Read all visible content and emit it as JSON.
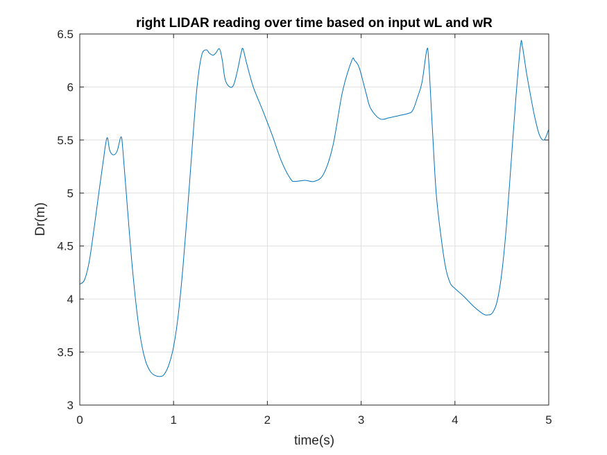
{
  "chart_data": {
    "type": "line",
    "title": "right LIDAR reading over time based on input wL and wR",
    "xlabel": "time(s)",
    "ylabel": "Dr(m)",
    "xlim": [
      0,
      5
    ],
    "ylim": [
      3,
      6.5
    ],
    "xticks": [
      "0",
      "1",
      "2",
      "3",
      "4",
      "5"
    ],
    "yticks": [
      "3",
      "3.5",
      "4",
      "4.5",
      "5",
      "5.5",
      "6",
      "6.5"
    ],
    "grid": true,
    "line_color": "#0072BD",
    "series": [
      {
        "x": [
          0,
          0.05,
          0.1,
          0.15,
          0.2,
          0.25,
          0.29,
          0.32,
          0.36,
          0.4,
          0.44,
          0.46,
          0.5,
          0.55,
          0.6,
          0.65,
          0.7,
          0.75,
          0.8,
          0.86,
          0.9,
          0.95,
          1.0,
          1.05,
          1.1,
          1.15,
          1.2,
          1.25,
          1.3,
          1.35,
          1.38,
          1.42,
          1.45,
          1.49,
          1.52,
          1.55,
          1.6,
          1.64,
          1.68,
          1.72,
          1.74,
          1.78,
          1.85,
          1.95,
          2.05,
          2.15,
          2.25,
          2.3,
          2.4,
          2.5,
          2.6,
          2.7,
          2.8,
          2.9,
          2.93,
          2.98,
          3.05,
          3.1,
          3.2,
          3.3,
          3.4,
          3.5,
          3.55,
          3.6,
          3.65,
          3.7,
          3.72,
          3.76,
          3.8,
          3.85,
          3.9,
          3.95,
          4.0,
          4.1,
          4.2,
          4.3,
          4.35,
          4.4,
          4.45,
          4.5,
          4.55,
          4.6,
          4.65,
          4.7,
          4.72,
          4.76,
          4.8,
          4.85,
          4.9,
          4.95,
          5.0
        ],
        "y": [
          4.14,
          4.18,
          4.35,
          4.65,
          4.98,
          5.3,
          5.52,
          5.4,
          5.36,
          5.4,
          5.53,
          5.4,
          4.95,
          4.4,
          3.95,
          3.62,
          3.42,
          3.32,
          3.28,
          3.27,
          3.29,
          3.38,
          3.55,
          3.85,
          4.3,
          4.85,
          5.45,
          6.0,
          6.3,
          6.35,
          6.32,
          6.3,
          6.32,
          6.36,
          6.25,
          6.07,
          6.0,
          6.02,
          6.15,
          6.32,
          6.36,
          6.22,
          6.0,
          5.78,
          5.55,
          5.3,
          5.13,
          5.11,
          5.12,
          5.11,
          5.18,
          5.45,
          5.95,
          6.25,
          6.25,
          6.18,
          5.95,
          5.8,
          5.7,
          5.71,
          5.73,
          5.75,
          5.78,
          5.9,
          6.05,
          6.35,
          6.25,
          5.6,
          5.0,
          4.6,
          4.3,
          4.15,
          4.1,
          4.02,
          3.93,
          3.86,
          3.85,
          3.87,
          3.98,
          4.25,
          4.7,
          5.3,
          5.9,
          6.4,
          6.38,
          6.15,
          5.95,
          5.72,
          5.55,
          5.5,
          5.6
        ]
      }
    ]
  }
}
